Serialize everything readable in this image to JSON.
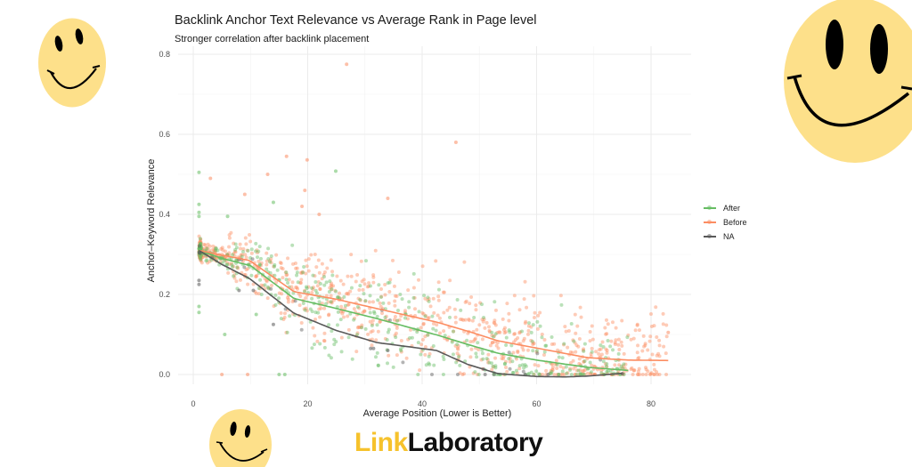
{
  "chart_data": {
    "type": "scatter",
    "title": "Backlink Anchor Text Relevance vs Average Rank in Page level",
    "subtitle": "Stronger correlation after backlink placement",
    "xlabel": "Average Position (Lower is Better)",
    "ylabel": "Anchor–Keyword Relevance",
    "xlim": [
      -2.5,
      86
    ],
    "ylim": [
      -0.03,
      0.82
    ],
    "x_ticks": [
      0,
      20,
      40,
      60,
      80
    ],
    "y_ticks": [
      0.0,
      0.2,
      0.4,
      0.6,
      0.8
    ],
    "y_tick_labels": [
      "0.0",
      "0.2",
      "0.4",
      "0.6",
      "0.8"
    ],
    "grid": true,
    "legend_position": "right",
    "legend": [
      "After",
      "Before",
      "NA"
    ],
    "series": [
      {
        "name": "After",
        "color": "#66bd63",
        "trend": {
          "x": [
            1,
            5,
            10,
            17.6,
            25,
            32,
            42.5,
            48,
            53.3,
            60,
            68.9,
            76
          ],
          "y": [
            0.31,
            0.29,
            0.272,
            0.19,
            0.165,
            0.14,
            0.099,
            0.075,
            0.053,
            0.036,
            0.018,
            0.01
          ]
        },
        "n_points_approx": 450,
        "outliers": [
          {
            "x": 1,
            "y": 0.505
          },
          {
            "x": 1,
            "y": 0.425
          },
          {
            "x": 1,
            "y": 0.405
          },
          {
            "x": 1,
            "y": 0.395
          },
          {
            "x": 1,
            "y": 0.17
          },
          {
            "x": 1,
            "y": 0.155
          },
          {
            "x": 6,
            "y": 0.395
          },
          {
            "x": 5.5,
            "y": 0.1
          },
          {
            "x": 14,
            "y": 0.43
          },
          {
            "x": 24.9,
            "y": 0.508
          },
          {
            "x": 11,
            "y": 0.15
          },
          {
            "x": 15,
            "y": 0.0
          },
          {
            "x": 16,
            "y": 0.0
          }
        ]
      },
      {
        "name": "Before",
        "color": "#fc8d62",
        "trend": {
          "x": [
            1,
            5,
            9.8,
            17.6,
            25,
            32,
            42.5,
            48,
            53.3,
            60,
            68.9,
            76,
            83
          ],
          "y": [
            0.31,
            0.298,
            0.285,
            0.207,
            0.188,
            0.165,
            0.131,
            0.108,
            0.084,
            0.066,
            0.042,
            0.036,
            0.035
          ]
        },
        "n_points_approx": 900,
        "outliers": [
          {
            "x": 26.8,
            "y": 0.775
          },
          {
            "x": 45.9,
            "y": 0.58
          },
          {
            "x": 16.3,
            "y": 0.545
          },
          {
            "x": 19.9,
            "y": 0.536
          },
          {
            "x": 3,
            "y": 0.49
          },
          {
            "x": 13,
            "y": 0.5
          },
          {
            "x": 9,
            "y": 0.45
          },
          {
            "x": 19.5,
            "y": 0.46
          },
          {
            "x": 34,
            "y": 0.44
          },
          {
            "x": 19,
            "y": 0.42
          },
          {
            "x": 22,
            "y": 0.4
          },
          {
            "x": 83,
            "y": 0.105
          },
          {
            "x": 5,
            "y": 0.0
          },
          {
            "x": 9.5,
            "y": 0.0
          },
          {
            "x": 77,
            "y": 0.01
          }
        ]
      },
      {
        "name": "NA",
        "color": "#595959",
        "trend": {
          "x": [
            1,
            5,
            9.8,
            17.6,
            25,
            32,
            42.5,
            48,
            53.3,
            60,
            65,
            68.9,
            75
          ],
          "y": [
            0.31,
            0.275,
            0.24,
            0.153,
            0.11,
            0.08,
            0.06,
            0.025,
            0.002,
            -0.005,
            -0.006,
            -0.004,
            0.003
          ]
        },
        "n_points_approx": 25,
        "outliers": [
          {
            "x": 1,
            "y": 0.235
          },
          {
            "x": 1,
            "y": 0.225
          },
          {
            "x": 8,
            "y": 0.21
          },
          {
            "x": 10.5,
            "y": 0.21
          },
          {
            "x": 14,
            "y": 0.125
          },
          {
            "x": 31,
            "y": 0.065
          },
          {
            "x": 31.5,
            "y": 0.065
          },
          {
            "x": 34,
            "y": 0.06
          },
          {
            "x": 51,
            "y": 0.0
          },
          {
            "x": 58,
            "y": 0.0
          },
          {
            "x": 62,
            "y": 0.0
          },
          {
            "x": 75,
            "y": 0.002
          }
        ]
      }
    ]
  },
  "branding": {
    "logo_part1": "Link",
    "logo_part2": "Laboratory",
    "decorations": [
      "smiley-face",
      "smiley-face",
      "smiley-face"
    ]
  }
}
